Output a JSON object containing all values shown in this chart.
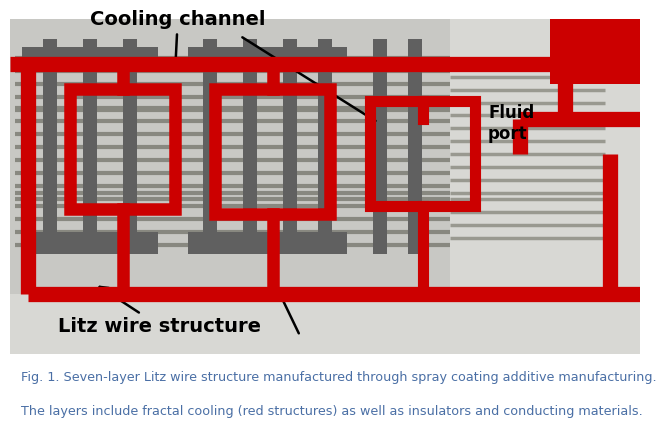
{
  "caption_line1": "Fig. 1. Seven-layer Litz wire structure manufactured through spray coating additive manufacturing.",
  "caption_line2": "The layers include fractal cooling (red structures) as well as insulators and conducting materials.",
  "caption_color": "#4a6fa5",
  "caption_fontsize": 9.2,
  "annotation_color": "black",
  "annotation_fontsize": 14,
  "cooling_channel_label": "Cooling channel",
  "litz_wire_label": "Litz wire structure",
  "fluid_port_label": "Fluid\nport",
  "bg_color": "#ffffff",
  "photo_bg": "#d0cfc8",
  "red": "#cc0000",
  "gray_wire": "#888888",
  "dark_gray": "#555555"
}
